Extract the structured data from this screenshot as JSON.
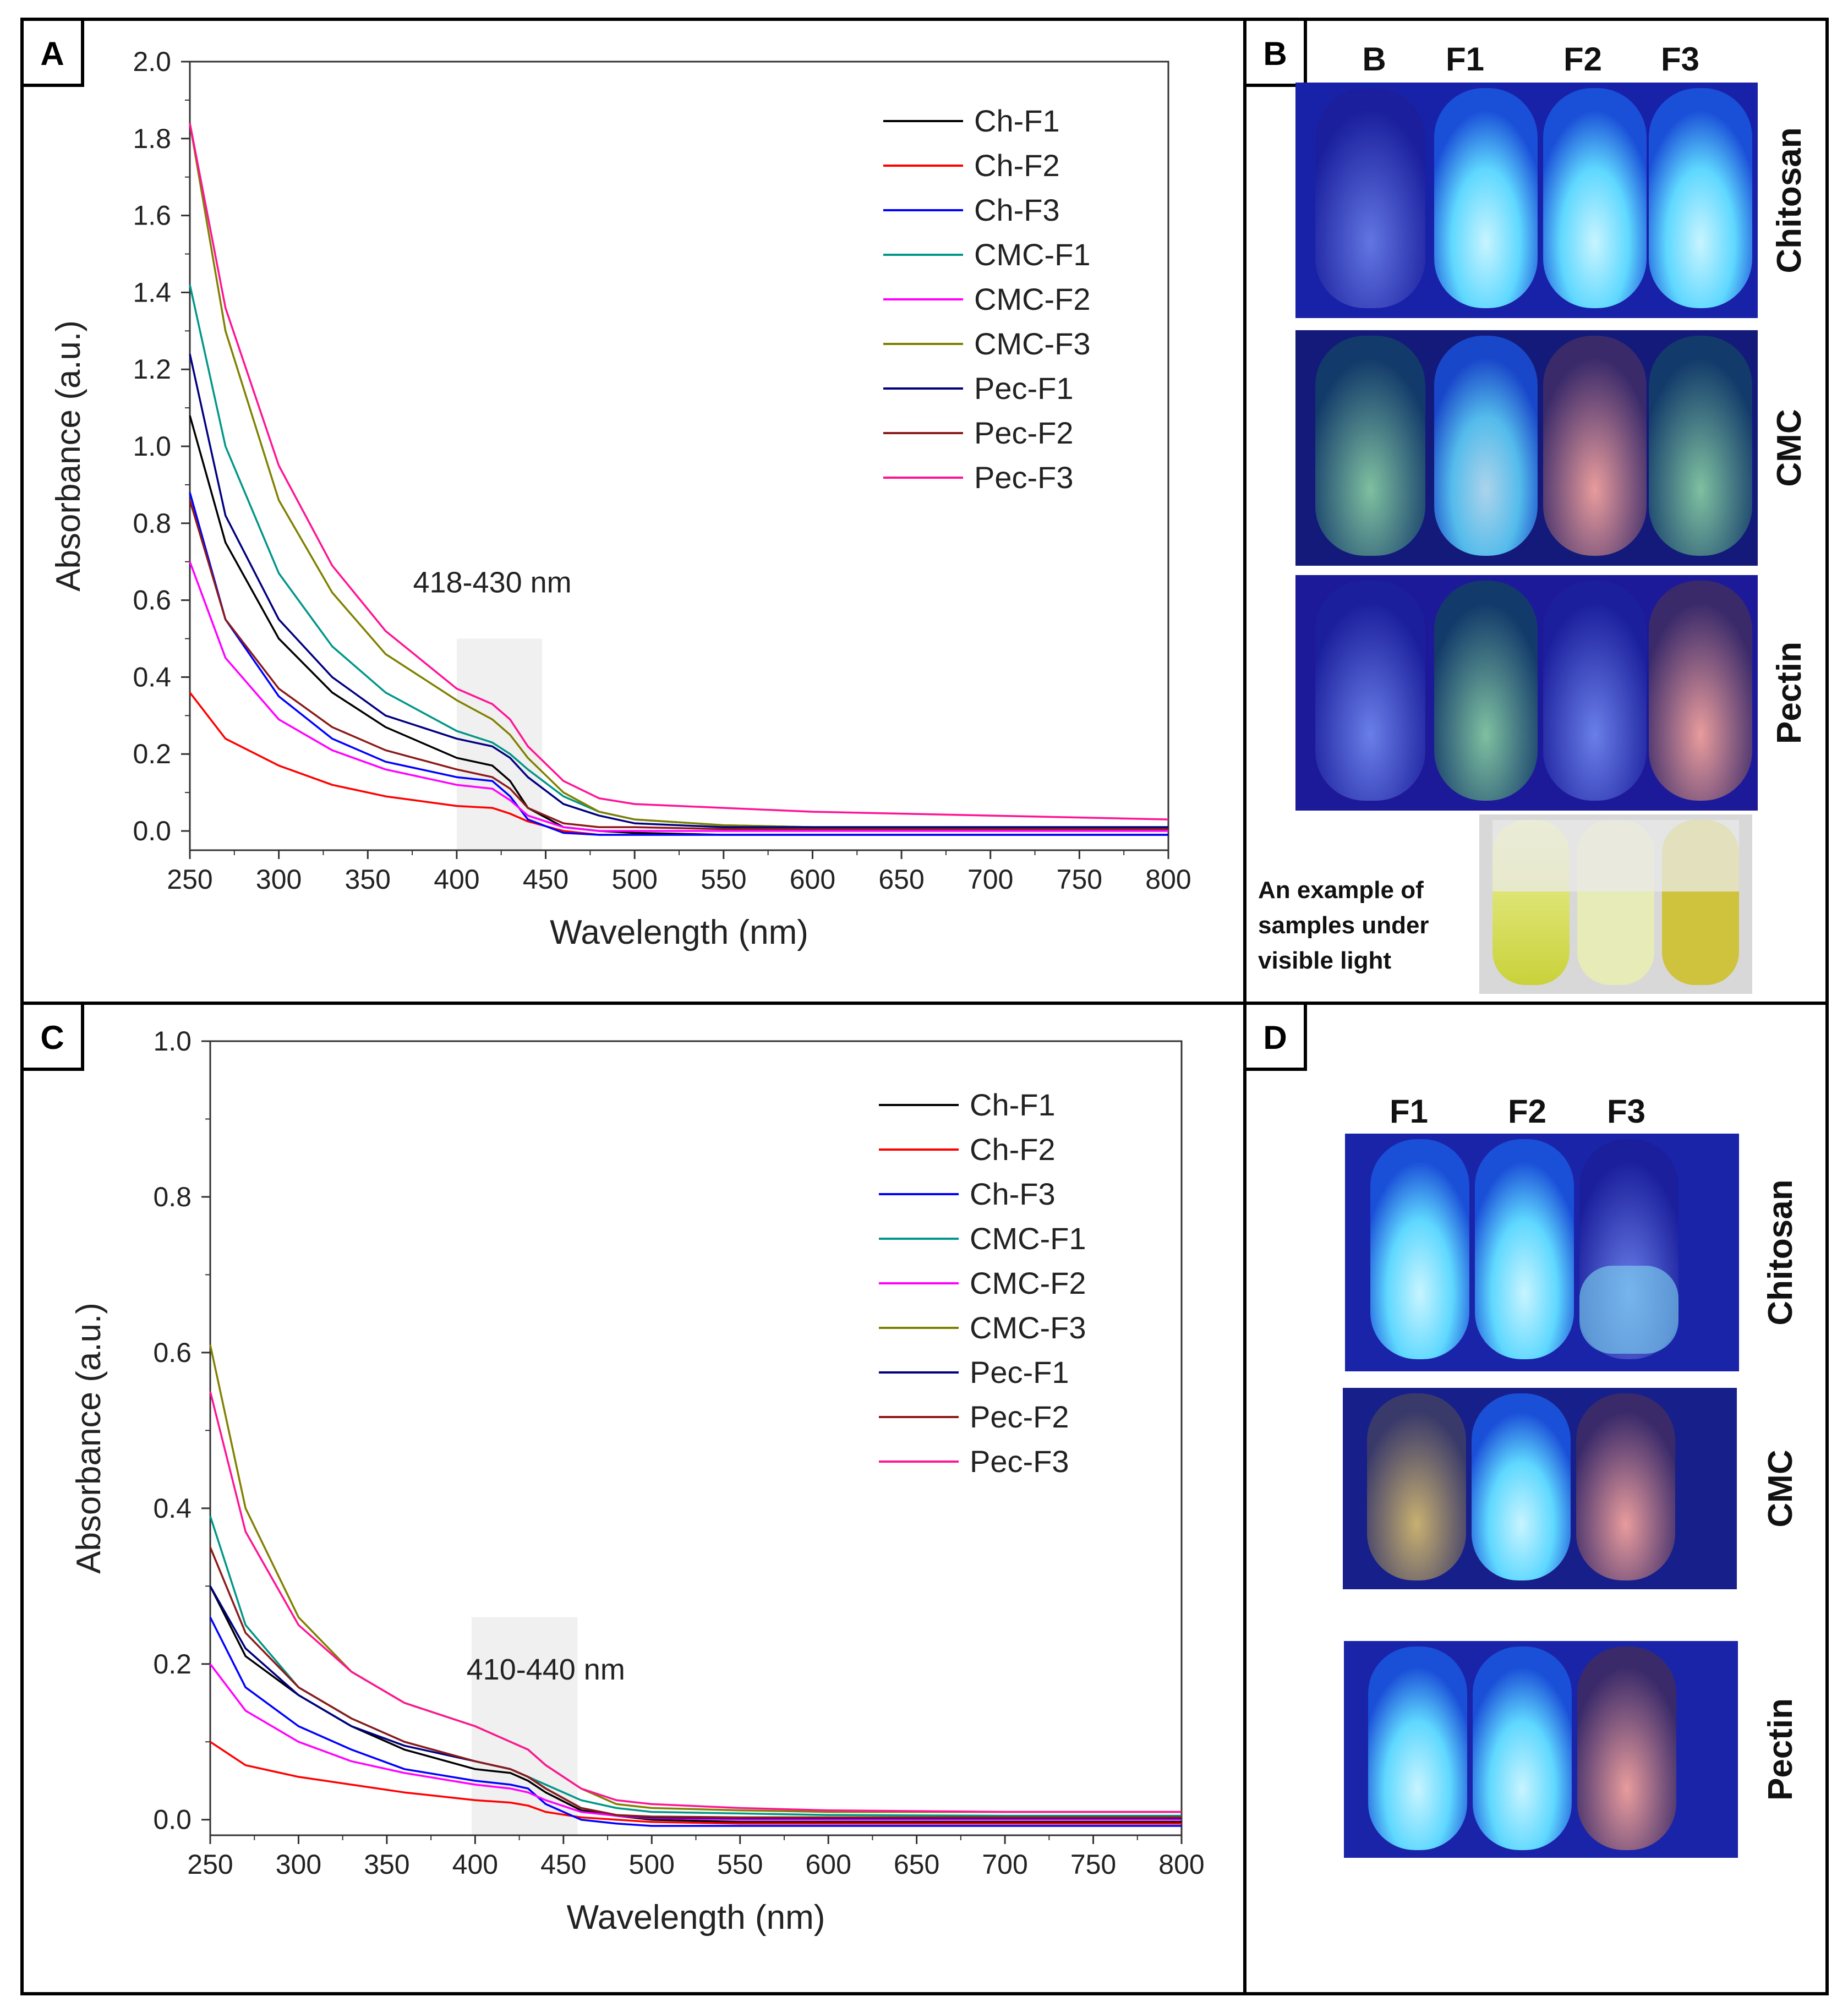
{
  "panel_letters": {
    "A": "A",
    "B": "B",
    "C": "C",
    "D": "D"
  },
  "chart_data": [
    {
      "panel": "A",
      "type": "line",
      "xlabel": "Wavelength (nm)",
      "ylabel": "Absorbance (a.u.)",
      "xlim": [
        250,
        800
      ],
      "ylim": [
        -0.05,
        2.0
      ],
      "xticks": [
        250,
        300,
        350,
        400,
        450,
        500,
        550,
        600,
        650,
        700,
        750,
        800
      ],
      "yticks": [
        0.0,
        0.2,
        0.4,
        0.6,
        0.8,
        1.0,
        1.2,
        1.4,
        1.6,
        1.8,
        2.0
      ],
      "ytick_labels": [
        "0.0",
        "0.2",
        "0.4",
        "0.6",
        "0.8",
        "1.0",
        "1.2",
        "1.4",
        "1.6",
        "1.8",
        "2.0"
      ],
      "highlight": {
        "x0": 400,
        "x1": 448,
        "y0": -0.05,
        "y1": 0.5,
        "color": "#f0f0f0"
      },
      "annotation": {
        "text": "418-430 nm",
        "x": 420,
        "y": 0.62
      },
      "legend_position": "top-right",
      "x": [
        250,
        270,
        300,
        330,
        360,
        400,
        420,
        430,
        440,
        460,
        480,
        500,
        550,
        600,
        700,
        800
      ],
      "series": [
        {
          "name": "Ch-F1",
          "color": "#000000",
          "values": [
            1.08,
            0.75,
            0.5,
            0.36,
            0.27,
            0.19,
            0.17,
            0.13,
            0.06,
            0.01,
            0.0,
            -0.005,
            -0.01,
            -0.01,
            -0.01,
            -0.01
          ]
        },
        {
          "name": "Ch-F2",
          "color": "#ff0000",
          "values": [
            0.36,
            0.24,
            0.17,
            0.12,
            0.09,
            0.065,
            0.06,
            0.045,
            0.025,
            0.0,
            -0.01,
            -0.01,
            -0.01,
            -0.01,
            -0.01,
            -0.01
          ]
        },
        {
          "name": "Ch-F3",
          "color": "#0000ff",
          "values": [
            0.88,
            0.55,
            0.35,
            0.24,
            0.18,
            0.14,
            0.13,
            0.09,
            0.03,
            -0.005,
            -0.01,
            -0.01,
            -0.01,
            -0.01,
            -0.01,
            -0.01
          ]
        },
        {
          "name": "CMC-F1",
          "color": "#009688",
          "values": [
            1.42,
            1.0,
            0.67,
            0.48,
            0.36,
            0.26,
            0.23,
            0.2,
            0.16,
            0.09,
            0.05,
            0.03,
            0.015,
            0.01,
            0.01,
            0.01
          ]
        },
        {
          "name": "CMC-F2",
          "color": "#ff00ff",
          "values": [
            0.7,
            0.45,
            0.29,
            0.21,
            0.16,
            0.12,
            0.11,
            0.08,
            0.04,
            0.01,
            0.0,
            0.0,
            0.0,
            0.0,
            0.0,
            0.0
          ]
        },
        {
          "name": "CMC-F3",
          "color": "#808000",
          "values": [
            1.84,
            1.3,
            0.86,
            0.62,
            0.46,
            0.34,
            0.29,
            0.25,
            0.19,
            0.1,
            0.05,
            0.03,
            0.015,
            0.01,
            0.01,
            0.01
          ]
        },
        {
          "name": "Pec-F1",
          "color": "#000080",
          "values": [
            1.24,
            0.82,
            0.55,
            0.4,
            0.3,
            0.24,
            0.22,
            0.19,
            0.14,
            0.07,
            0.04,
            0.02,
            0.01,
            0.01,
            0.01,
            0.01
          ]
        },
        {
          "name": "Pec-F2",
          "color": "#8b1a1a",
          "values": [
            0.86,
            0.55,
            0.37,
            0.27,
            0.21,
            0.16,
            0.14,
            0.11,
            0.06,
            0.02,
            0.01,
            0.01,
            0.005,
            0.005,
            0.005,
            0.005
          ]
        },
        {
          "name": "Pec-F3",
          "color": "#ff1493",
          "values": [
            1.84,
            1.36,
            0.95,
            0.69,
            0.52,
            0.37,
            0.33,
            0.29,
            0.22,
            0.13,
            0.085,
            0.07,
            0.06,
            0.05,
            0.04,
            0.03
          ]
        }
      ]
    },
    {
      "panel": "C",
      "type": "line",
      "xlabel": "Wavelength (nm)",
      "ylabel": "Absorbance (a.u.)",
      "xlim": [
        250,
        800
      ],
      "ylim": [
        -0.02,
        1.0
      ],
      "xticks": [
        250,
        300,
        350,
        400,
        450,
        500,
        550,
        600,
        650,
        700,
        750,
        800
      ],
      "yticks": [
        0.0,
        0.2,
        0.4,
        0.6,
        0.8,
        1.0
      ],
      "ytick_labels": [
        "0.0",
        "0.2",
        "0.4",
        "0.6",
        "0.8",
        "1.0"
      ],
      "highlight": {
        "x0": 398,
        "x1": 458,
        "y0": -0.02,
        "y1": 0.26,
        "color": "#f0f0f0"
      },
      "annotation": {
        "text": "410-440 nm",
        "x": 440,
        "y": 0.18
      },
      "legend_position": "top-right",
      "x": [
        250,
        270,
        300,
        330,
        360,
        400,
        420,
        430,
        440,
        460,
        480,
        500,
        550,
        600,
        700,
        800
      ],
      "series": [
        {
          "name": "Ch-F1",
          "color": "#000000",
          "values": [
            0.3,
            0.21,
            0.16,
            0.12,
            0.09,
            0.065,
            0.06,
            0.05,
            0.035,
            0.012,
            0.005,
            0.0,
            -0.003,
            -0.003,
            -0.003,
            -0.003
          ]
        },
        {
          "name": "Ch-F2",
          "color": "#ff0000",
          "values": [
            0.1,
            0.07,
            0.055,
            0.045,
            0.035,
            0.025,
            0.022,
            0.018,
            0.01,
            0.003,
            0.0,
            -0.003,
            -0.005,
            -0.005,
            -0.005,
            -0.005
          ]
        },
        {
          "name": "Ch-F3",
          "color": "#0000ff",
          "values": [
            0.26,
            0.17,
            0.12,
            0.09,
            0.065,
            0.05,
            0.045,
            0.04,
            0.02,
            0.0,
            -0.005,
            -0.008,
            -0.008,
            -0.008,
            -0.008,
            -0.008
          ]
        },
        {
          "name": "CMC-F1",
          "color": "#009688",
          "values": [
            0.39,
            0.25,
            0.17,
            0.13,
            0.1,
            0.075,
            0.065,
            0.055,
            0.045,
            0.025,
            0.015,
            0.01,
            0.008,
            0.006,
            0.005,
            0.005
          ]
        },
        {
          "name": "CMC-F2",
          "color": "#ff00ff",
          "values": [
            0.2,
            0.14,
            0.1,
            0.075,
            0.06,
            0.045,
            0.04,
            0.035,
            0.025,
            0.01,
            0.005,
            0.002,
            0.0,
            0.0,
            0.0,
            0.0
          ]
        },
        {
          "name": "CMC-F3",
          "color": "#808000",
          "values": [
            0.61,
            0.4,
            0.26,
            0.19,
            0.15,
            0.12,
            0.1,
            0.09,
            0.07,
            0.04,
            0.02,
            0.015,
            0.012,
            0.01,
            0.01,
            0.01
          ]
        },
        {
          "name": "Pec-F1",
          "color": "#000080",
          "values": [
            0.3,
            0.22,
            0.16,
            0.12,
            0.095,
            0.075,
            0.065,
            0.055,
            0.04,
            0.015,
            0.006,
            0.003,
            0.002,
            0.002,
            0.002,
            0.002
          ]
        },
        {
          "name": "Pec-F2",
          "color": "#8b1a1a",
          "values": [
            0.35,
            0.24,
            0.17,
            0.13,
            0.1,
            0.075,
            0.065,
            0.055,
            0.04,
            0.015,
            0.006,
            0.004,
            0.003,
            0.003,
            0.003,
            0.003
          ]
        },
        {
          "name": "Pec-F3",
          "color": "#ff1493",
          "values": [
            0.55,
            0.37,
            0.25,
            0.19,
            0.15,
            0.12,
            0.1,
            0.09,
            0.07,
            0.04,
            0.025,
            0.02,
            0.015,
            0.012,
            0.01,
            0.01
          ]
        }
      ]
    }
  ],
  "panel_B": {
    "columns": [
      "B",
      "F1",
      "F2",
      "F3"
    ],
    "rows": [
      "Chitosan",
      "CMC",
      "Pectin"
    ],
    "visible_light_caption": [
      "An  example  of",
      "samples  under",
      "visible light"
    ]
  },
  "panel_D": {
    "columns": [
      "F1",
      "F2",
      "F3"
    ],
    "rows": [
      "Chitosan",
      "CMC",
      "Pectin"
    ]
  }
}
